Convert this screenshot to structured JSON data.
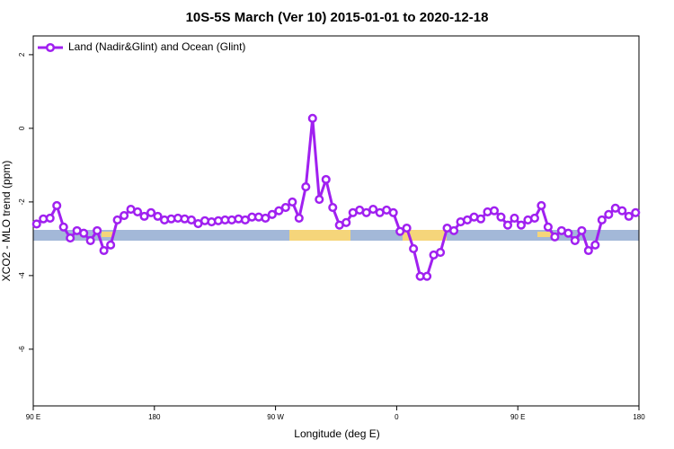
{
  "chart_data": {
    "type": "line",
    "title": "10S-5S March (Ver 10)   2015-01-01 to 2020-12-18",
    "x_label": "Longitude (deg E)",
    "y_label": "XCO2 - MLO trend (ppm)",
    "xlim": [
      90,
      540
    ],
    "ylim": [
      -7.54,
      2.51
    ],
    "xticks": [
      {
        "value": 90,
        "label": "90 E"
      },
      180,
      {
        "value": 270,
        "label": "90 W"
      },
      {
        "value": 360,
        "label": "0"
      },
      {
        "value": 450,
        "label": "90 E"
      },
      {
        "value": 540,
        "label": "180"
      }
    ],
    "yticks": [
      2,
      0,
      -2,
      -4,
      -6
    ],
    "legend": "top-left",
    "x": [
      92.5,
      97.5,
      102.5,
      107.5,
      112.5,
      117.5,
      122.5,
      127.5,
      132.5,
      137.5,
      142.5,
      147.5,
      152.5,
      157.5,
      162.5,
      167.5,
      172.5,
      177.5,
      182.5,
      187.5,
      192.5,
      197.5,
      202.5,
      207.5,
      212.5,
      217.5,
      222.5,
      227.5,
      232.5,
      237.5,
      242.5,
      247.5,
      252.5,
      257.5,
      262.5,
      267.5,
      272.5,
      277.5,
      282.5,
      287.5,
      292.5,
      297.5,
      302.5,
      307.5,
      312.5,
      317.5,
      322.5,
      327.5,
      332.5,
      337.5,
      342.5,
      347.5,
      352.5,
      357.5,
      362.5,
      367.5,
      372.5,
      377.5,
      382.5,
      387.5,
      392.5,
      397.5,
      402.5,
      407.5,
      412.5,
      417.5,
      422.5,
      427.5,
      432.5,
      437.5,
      442.5,
      447.5,
      452.5,
      457.5,
      462.5,
      467.5,
      472.5,
      477.5,
      482.5,
      487.5,
      492.5,
      497.5,
      502.5,
      507.5,
      512.5,
      517.5,
      522.5,
      527.5,
      532.5,
      537.5
    ],
    "series": [
      {
        "name": "Land (Nadir&Glint) and Ocean (Glint)",
        "color": "#a020f0",
        "values": [
          -2.6,
          -2.46,
          -2.44,
          -2.1,
          -2.68,
          -2.98,
          -2.78,
          -2.85,
          -3.05,
          -2.78,
          -3.32,
          -3.17,
          -2.49,
          -2.37,
          -2.2,
          -2.27,
          -2.39,
          -2.29,
          -2.39,
          -2.49,
          -2.46,
          -2.44,
          -2.46,
          -2.49,
          -2.59,
          -2.51,
          -2.54,
          -2.51,
          -2.49,
          -2.49,
          -2.46,
          -2.49,
          -2.41,
          -2.41,
          -2.44,
          -2.34,
          -2.24,
          -2.15,
          -2.0,
          -2.44,
          -1.59,
          0.27,
          -1.93,
          -1.39,
          -2.15,
          -2.63,
          -2.56,
          -2.29,
          -2.22,
          -2.29,
          -2.2,
          -2.29,
          -2.22,
          -2.29,
          -2.8,
          -2.71,
          -3.27,
          -4.02,
          -4.02,
          -3.44,
          -3.37,
          -2.71,
          -2.78,
          -2.54,
          -2.49,
          -2.41,
          -2.46,
          -2.27,
          -2.24,
          -2.41,
          -2.63,
          -2.44,
          -2.63,
          -2.49,
          -2.44,
          -2.1,
          -2.68,
          -2.95,
          -2.78,
          -2.85,
          -3.05,
          -2.78,
          -3.32,
          -3.17,
          -2.49,
          -2.34,
          -2.17,
          -2.24,
          -2.39,
          -2.29
        ]
      }
    ]
  }
}
